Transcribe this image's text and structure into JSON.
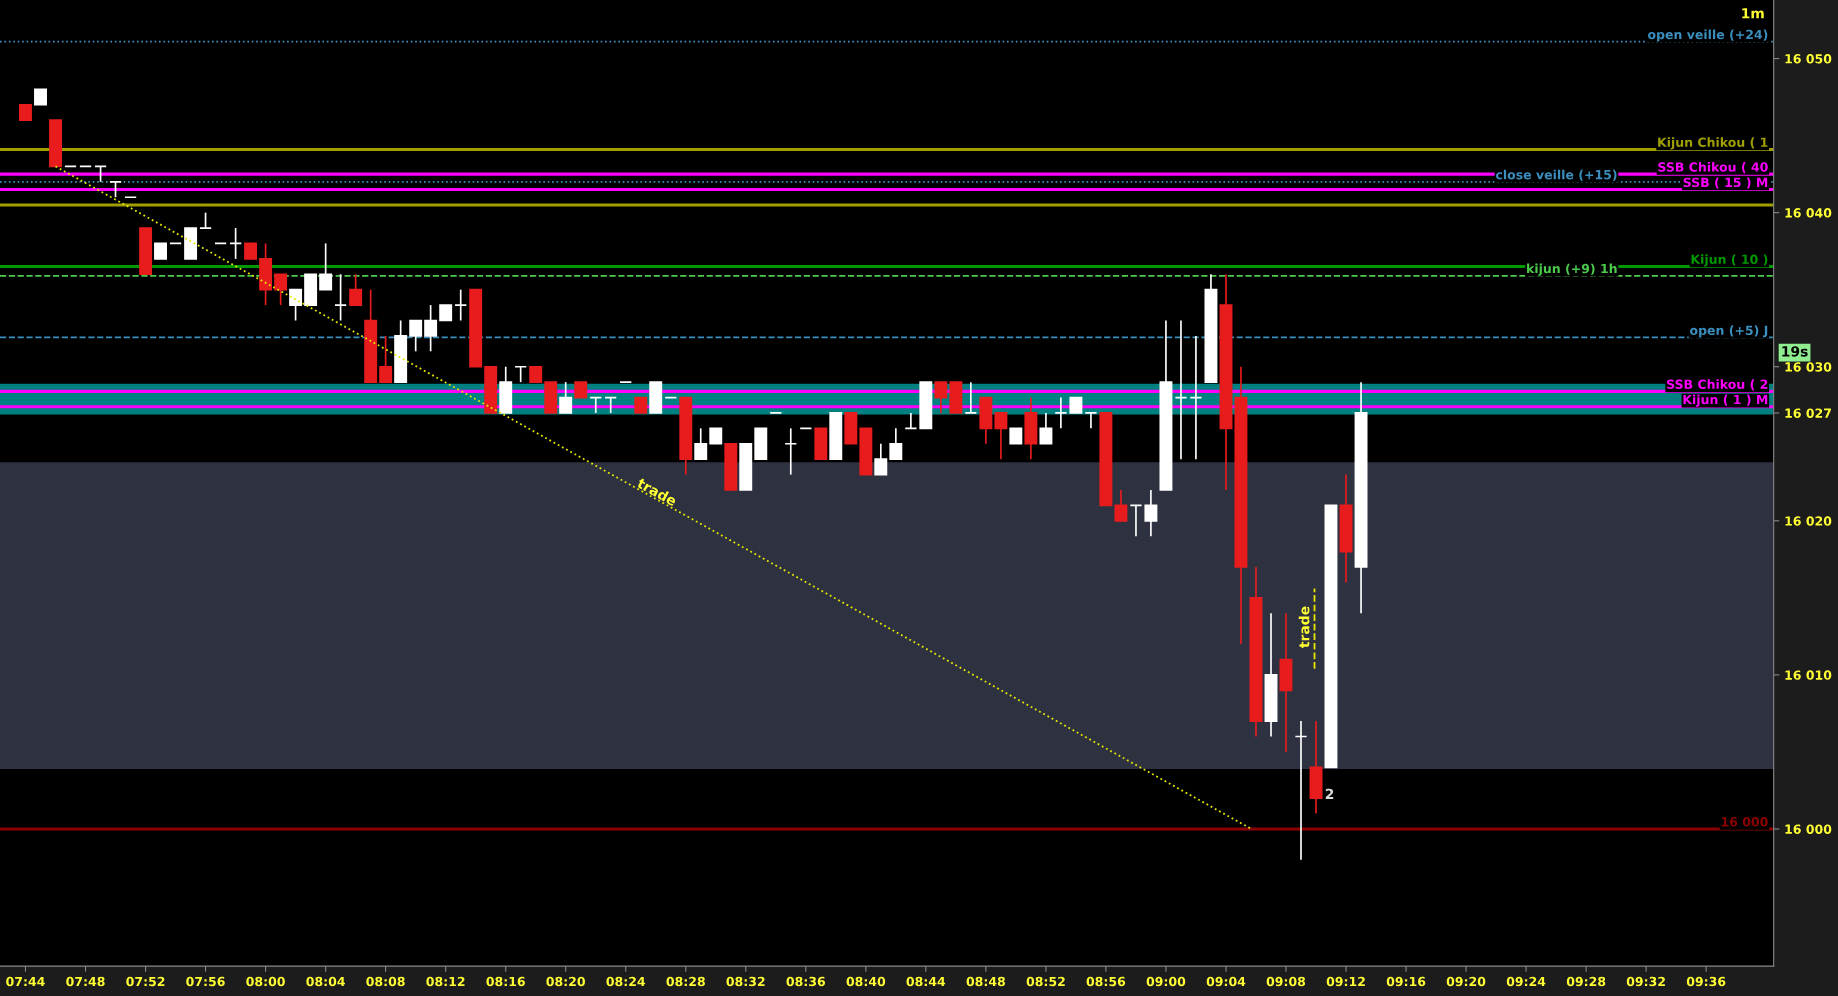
{
  "chart_data": {
    "type": "candlestick",
    "x": [
      7.7333,
      7.75,
      7.7667,
      7.7833,
      7.8,
      7.8167,
      7.8333,
      7.85,
      7.8667,
      7.8833,
      7.9,
      7.9167,
      7.9333,
      7.95,
      7.9667,
      7.9833,
      8.0,
      8.0167,
      8.0333,
      8.05,
      8.0667,
      8.0833,
      8.1,
      8.1167,
      8.1333,
      8.15,
      8.1667,
      8.1833,
      8.2,
      8.2167,
      8.2333,
      8.25,
      8.2667,
      8.2833,
      8.3,
      8.3167,
      8.3333,
      8.35,
      8.3667,
      8.3833,
      8.4,
      8.4167,
      8.4333,
      8.45,
      8.4667,
      8.4833,
      8.5,
      8.5167,
      8.5333,
      8.55,
      8.5667,
      8.5833,
      8.6,
      8.6167,
      8.6333,
      8.65,
      8.6667,
      8.6833,
      8.7,
      8.7167,
      8.7333,
      8.75,
      8.7667,
      8.7833,
      8.8,
      8.8167,
      8.8333,
      8.85,
      8.8667,
      8.8833,
      8.9,
      8.9167,
      8.9333,
      8.95,
      8.9667,
      8.9833,
      9.0,
      9.0167,
      9.0333,
      9.05,
      9.0667,
      9.0833,
      9.1,
      9.1167,
      9.1333,
      9.15,
      9.1667,
      9.1833,
      9.2,
      9.2167
    ],
    "ohlc": [
      [
        16047,
        16047,
        16046,
        16046
      ],
      [
        16047,
        16048,
        16047,
        16048
      ],
      [
        16046,
        16046,
        16043,
        16043
      ],
      [
        16043,
        16043,
        16043,
        16043
      ],
      [
        16043,
        16043,
        16043,
        16043
      ],
      [
        16043,
        16043,
        16042,
        16043
      ],
      [
        16042,
        16042,
        16041,
        16042
      ],
      [
        16041,
        16041,
        16041,
        16041
      ],
      [
        16039,
        16039,
        16036,
        16036
      ],
      [
        16037,
        16038,
        16037,
        16038
      ],
      [
        16038,
        16038,
        16038,
        16038
      ],
      [
        16037,
        16039,
        16037,
        16039
      ],
      [
        16039,
        16040,
        16039,
        16039
      ],
      [
        16038,
        16038,
        16038,
        16038
      ],
      [
        16038,
        16039,
        16037,
        16038
      ],
      [
        16038,
        16038,
        16037,
        16037
      ],
      [
        16037,
        16038,
        16034,
        16035
      ],
      [
        16036,
        16036,
        16034,
        16035
      ],
      [
        16034,
        16035,
        16033,
        16035
      ],
      [
        16034,
        16036,
        16034,
        16036
      ],
      [
        16035,
        16038,
        16035,
        16036
      ],
      [
        16034,
        16036,
        16033,
        16034
      ],
      [
        16035,
        16036,
        16034,
        16034
      ],
      [
        16033,
        16035,
        16029,
        16029
      ],
      [
        16030,
        16032,
        16029,
        16029
      ],
      [
        16029,
        16033,
        16029,
        16032
      ],
      [
        16032,
        16033,
        16031,
        16033
      ],
      [
        16032,
        16034,
        16031,
        16033
      ],
      [
        16033,
        16034,
        16033,
        16034
      ],
      [
        16034,
        16035,
        16033,
        16034
      ],
      [
        16035,
        16035,
        16030,
        16030
      ],
      [
        16030,
        16030,
        16027,
        16027
      ],
      [
        16027,
        16030,
        16027,
        16029
      ],
      [
        16030,
        16030,
        16029,
        16030
      ],
      [
        16030,
        16030,
        16029,
        16029
      ],
      [
        16029,
        16029,
        16027,
        16027
      ],
      [
        16027,
        16029,
        16027,
        16028
      ],
      [
        16029,
        16029,
        16028,
        16028
      ],
      [
        16028,
        16028,
        16027,
        16028
      ],
      [
        16028,
        16028,
        16027,
        16028
      ],
      [
        16029,
        16029,
        16029,
        16029
      ],
      [
        16028,
        16028,
        16027,
        16027
      ],
      [
        16027,
        16029,
        16027,
        16029
      ],
      [
        16028,
        16028,
        16028,
        16028
      ],
      [
        16028,
        16028,
        16023,
        16024
      ],
      [
        16024,
        16026,
        16024,
        16025
      ],
      [
        16025,
        16026,
        16025,
        16026
      ],
      [
        16025,
        16025,
        16022,
        16022
      ],
      [
        16022,
        16025,
        16022,
        16025
      ],
      [
        16024,
        16026,
        16024,
        16026
      ],
      [
        16027,
        16027,
        16027,
        16027
      ],
      [
        16025,
        16026,
        16023,
        16025
      ],
      [
        16026,
        16026,
        16026,
        16026
      ],
      [
        16026,
        16026,
        16024,
        16024
      ],
      [
        16024,
        16027,
        16024,
        16027
      ],
      [
        16027,
        16027,
        16025,
        16025
      ],
      [
        16026,
        16026,
        16023,
        16023
      ],
      [
        16023,
        16025,
        16023,
        16024
      ],
      [
        16024,
        16026,
        16024,
        16025
      ],
      [
        16026,
        16027,
        16026,
        16026
      ],
      [
        16026,
        16029,
        16026,
        16029
      ],
      [
        16029,
        16029,
        16027,
        16028
      ],
      [
        16029,
        16029,
        16027,
        16027
      ],
      [
        16027,
        16029,
        16027,
        16027
      ],
      [
        16028,
        16028,
        16025,
        16026
      ],
      [
        16027,
        16027,
        16024,
        16026
      ],
      [
        16025,
        16026,
        16025,
        16026
      ],
      [
        16027,
        16028,
        16024,
        16025
      ],
      [
        16025,
        16027,
        16025,
        16026
      ],
      [
        16027,
        16028,
        16026,
        16027
      ],
      [
        16027,
        16028,
        16027,
        16028
      ],
      [
        16027,
        16027,
        16026,
        16027
      ],
      [
        16027,
        16027,
        16021,
        16021
      ],
      [
        16021,
        16022,
        16020,
        16020
      ],
      [
        16021,
        16021,
        16019,
        16021
      ],
      [
        16020,
        16022,
        16019,
        16021
      ],
      [
        16022,
        16033,
        16022,
        16029
      ],
      [
        16028,
        16033,
        16024,
        16028
      ],
      [
        16028,
        16032,
        16024,
        16028
      ],
      [
        16029,
        16036,
        16029,
        16035
      ],
      [
        16034,
        16036,
        16022,
        16026
      ],
      [
        16028,
        16030,
        16012,
        16017
      ],
      [
        16015,
        16017,
        16006,
        16007
      ],
      [
        16007,
        16014,
        16006,
        16010
      ],
      [
        16011,
        16014,
        16005,
        16009
      ],
      [
        16006,
        16007,
        15998,
        16006
      ],
      [
        16004,
        16007,
        16001,
        16002
      ],
      [
        16004,
        16021,
        16004,
        16021
      ],
      [
        16021,
        16023,
        16016,
        16018
      ],
      [
        16017,
        16029,
        16014,
        16027
      ]
    ],
    "colors": [
      "#e81c1c",
      "#ffffff",
      "#e81c1c",
      "#ffffff",
      "#ffffff",
      "#ffffff",
      "#ffffff",
      "#ffffff",
      "#e81c1c",
      "#ffffff",
      "#ffffff",
      "#ffffff",
      "#ffffff",
      "#ffffff",
      "#ffffff",
      "#e81c1c",
      "#e81c1c",
      "#e81c1c",
      "#ffffff",
      "#ffffff",
      "#ffffff",
      "#ffffff",
      "#e81c1c",
      "#e81c1c",
      "#e81c1c",
      "#ffffff",
      "#ffffff",
      "#ffffff",
      "#ffffff",
      "#ffffff",
      "#e81c1c",
      "#e81c1c",
      "#ffffff",
      "#ffffff",
      "#e81c1c",
      "#e81c1c",
      "#ffffff",
      "#e81c1c",
      "#ffffff",
      "#ffffff",
      "#ffffff",
      "#e81c1c",
      "#ffffff",
      "#ffffff",
      "#e81c1c",
      "#ffffff",
      "#ffffff",
      "#e81c1c",
      "#ffffff",
      "#ffffff",
      "#ffffff",
      "#ffffff",
      "#ffffff",
      "#e81c1c",
      "#ffffff",
      "#e81c1c",
      "#e81c1c",
      "#ffffff",
      "#ffffff",
      "#ffffff",
      "#ffffff",
      "#e81c1c",
      "#e81c1c",
      "#ffffff",
      "#e81c1c",
      "#e81c1c",
      "#ffffff",
      "#e81c1c",
      "#ffffff",
      "#ffffff",
      "#ffffff",
      "#ffffff",
      "#e81c1c",
      "#e81c1c",
      "#ffffff",
      "#ffffff",
      "#ffffff",
      "#ffffff",
      "#ffffff",
      "#ffffff",
      "#e81c1c",
      "#e81c1c",
      "#e81c1c",
      "#ffffff",
      "#e81c1c",
      "#ffffff",
      "#e81c1c",
      "#ffffff",
      "#e81c1c",
      "#ffffff"
    ],
    "series": [
      {
        "type": "line",
        "x": [
          7.7667,
          9.095
        ],
        "values": [
          16043,
          16000
        ],
        "color": "#e6e600",
        "line_style": "dotted"
      },
      {
        "type": "line",
        "x": [
          9.165,
          9.165
        ],
        "values": [
          16010.4,
          16015.6
        ],
        "color": "#e6e600",
        "line_style": "dashed"
      }
    ],
    "xlim": [
      7.705,
      9.675
    ],
    "xticks": [
      {
        "value": 7.7333,
        "label": "07:44"
      },
      {
        "value": 7.8,
        "label": "07:48"
      },
      {
        "value": 7.8667,
        "label": "07:52"
      },
      {
        "value": 7.9333,
        "label": "07:56"
      },
      {
        "value": 8.0,
        "label": "08:00"
      },
      {
        "value": 8.0667,
        "label": "08:04"
      },
      {
        "value": 8.1333,
        "label": "08:08"
      },
      {
        "value": 8.2,
        "label": "08:12"
      },
      {
        "value": 8.2667,
        "label": "08:16"
      },
      {
        "value": 8.3333,
        "label": "08:20"
      },
      {
        "value": 8.4,
        "label": "08:24"
      },
      {
        "value": 8.4667,
        "label": "08:28"
      },
      {
        "value": 8.5333,
        "label": "08:32"
      },
      {
        "value": 8.6,
        "label": "08:36"
      },
      {
        "value": 8.6667,
        "label": "08:40"
      },
      {
        "value": 8.7333,
        "label": "08:44"
      },
      {
        "value": 8.8,
        "label": "08:48"
      },
      {
        "value": 8.8667,
        "label": "08:52"
      },
      {
        "value": 8.9333,
        "label": "08:56"
      },
      {
        "value": 9.0,
        "label": "09:00"
      },
      {
        "value": 9.0667,
        "label": "09:04"
      },
      {
        "value": 9.1333,
        "label": "09:08"
      },
      {
        "value": 9.2,
        "label": "09:12"
      },
      {
        "value": 9.2667,
        "label": "09:16"
      },
      {
        "value": 9.3333,
        "label": "09:20"
      },
      {
        "value": 9.4,
        "label": "09:24"
      },
      {
        "value": 9.4667,
        "label": "09:28"
      },
      {
        "value": 9.5333,
        "label": "09:32"
      },
      {
        "value": 9.6,
        "label": "09:36"
      }
    ],
    "ylim": [
      15991.1,
      16053.8
    ],
    "yticks": [
      {
        "value": 16000,
        "label": "16 000"
      },
      {
        "value": 16010,
        "label": "16 010"
      },
      {
        "value": 16020,
        "label": "16 020"
      },
      {
        "value": 16027,
        "label": "16 027"
      },
      {
        "value": 16030,
        "label": "16 030"
      },
      {
        "value": 16040,
        "label": "16 040"
      },
      {
        "value": 16050,
        "label": "16 050"
      }
    ],
    "ref_lines": [
      {
        "axis": "y",
        "value": 16051.1,
        "label": "open veille (+24)",
        "color": "#3a8fbf",
        "line_style": "dotted"
      },
      {
        "axis": "y",
        "value": 16044.1,
        "label": "Kijun Chikou ( 1",
        "color": "#a0a000",
        "line_style": "solid"
      },
      {
        "axis": "y",
        "value": 16042.5,
        "label": "SSB Chikou ( 40",
        "color": "#ff00ff",
        "line_style": "solid"
      },
      {
        "axis": "y",
        "value": 16042,
        "label": "close veille (+15)",
        "color": "#3a8fbf",
        "line_style": "dotted"
      },
      {
        "axis": "y",
        "value": 16041.5,
        "label": "SSB ( 15 ) M",
        "color": "#ff00ff",
        "line_style": "solid"
      },
      {
        "axis": "y",
        "value": 16040.5,
        "color": "#a0a000",
        "line_style": "solid"
      },
      {
        "axis": "y",
        "value": 16036.5,
        "label": "Kijun ( 10 )",
        "color": "#009900",
        "line_style": "solid"
      },
      {
        "axis": "y",
        "value": 16035.9,
        "label": "kijun (+9) 1h",
        "color": "#4ccc4c",
        "line_style": "dashed"
      },
      {
        "axis": "y",
        "value": 16031.9,
        "label": "open (+5) J",
        "color": "#3a8fbf",
        "line_style": "dashed"
      },
      {
        "axis": "y",
        "value": 16028.4,
        "label": "SSB Chikou ( 2",
        "color": "#ff00ff",
        "line_style": "solid"
      },
      {
        "axis": "y",
        "value": 16027.4,
        "label": "Kijun ( 1 ) M",
        "color": "#ff00ff",
        "line_style": "solid"
      },
      {
        "axis": "y",
        "value": 16000,
        "label": "16 000",
        "color": "#8b0000",
        "line_style": "solid"
      }
    ],
    "bands": [
      {
        "axis": "y",
        "from": 16026.9,
        "to": 16028.9,
        "color": "#008080"
      },
      {
        "axis": "y",
        "from": 16003.9,
        "to": 16023.8,
        "color": "#2e3240"
      }
    ],
    "annotations": [
      {
        "text": "trade",
        "x": 8.4342,
        "y": 16021.8
      },
      "trade",
      "2",
      "1m",
      "19s"
    ],
    "grid": false,
    "legend": false
  }
}
